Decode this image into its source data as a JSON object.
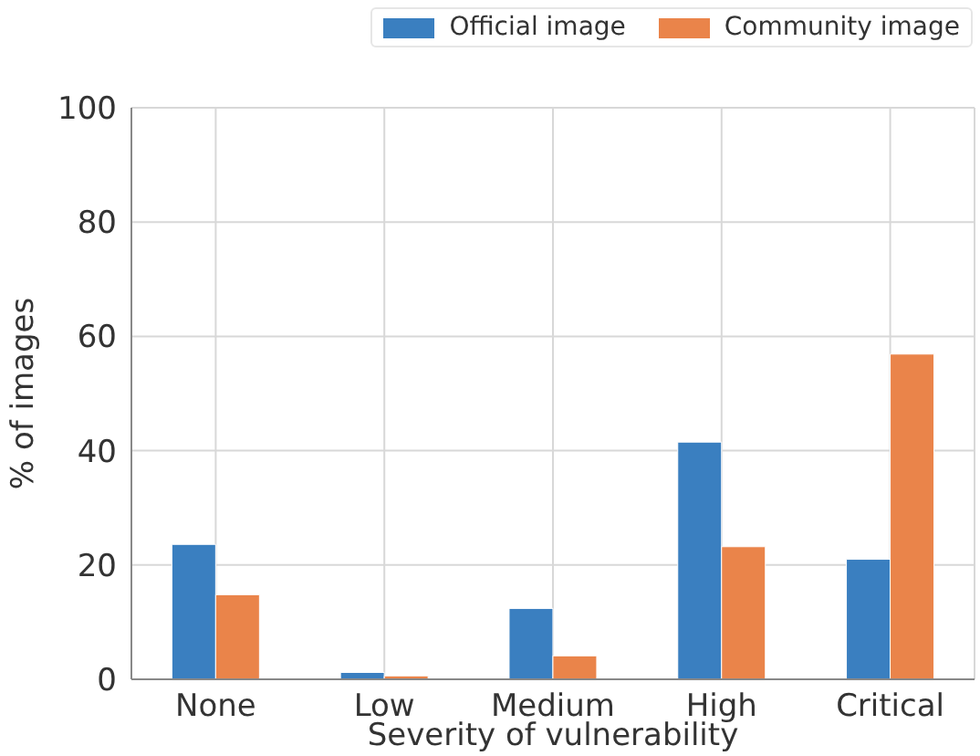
{
  "chart_data": {
    "type": "bar",
    "xlabel": "Severity of vulnerability",
    "ylabel": "% of images",
    "categories": [
      "None",
      "Low",
      "Medium",
      "High",
      "Critical"
    ],
    "series": [
      {
        "name": "Official image",
        "color": "#3a7fc0",
        "values": [
          23.6,
          1.2,
          12.4,
          41.5,
          21.0
        ]
      },
      {
        "name": "Community image",
        "color": "#ea844a",
        "values": [
          14.8,
          0.6,
          4.1,
          23.2,
          56.9
        ]
      }
    ],
    "ylim": [
      0,
      100
    ],
    "yticks": [
      0,
      20,
      40,
      60,
      80,
      100
    ],
    "grid": true,
    "legend": "top right"
  }
}
